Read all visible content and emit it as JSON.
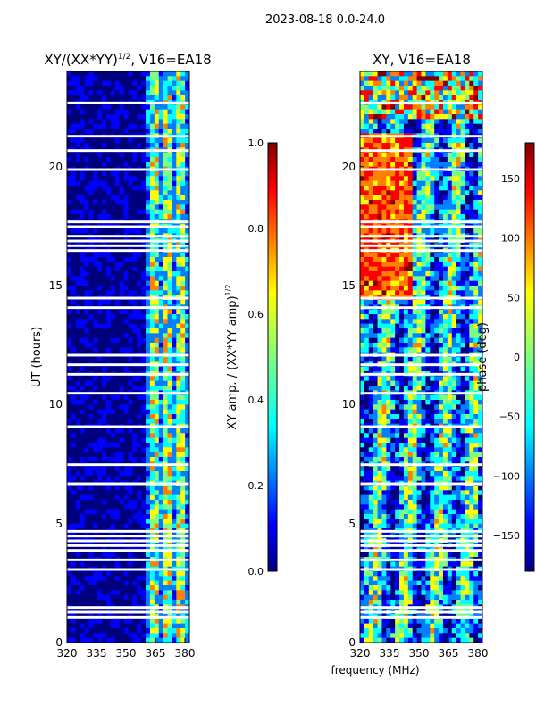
{
  "figure_title": "2023-08-18 0.0-24.0",
  "colors": {
    "c0": "#00007f",
    "c1": "#0000ff",
    "c2": "#0080ff",
    "c3": "#00ffff",
    "c4": "#7fff7f",
    "c5": "#ffff00",
    "c6": "#ff8000",
    "c7": "#ff0000",
    "c8": "#7f0000"
  },
  "chart_data": [
    {
      "type": "heatmap",
      "title": "XY/(XX*YY)",
      "title_exponent": "1/2",
      "title_suffix": ", V16=EA18",
      "xlabel": "",
      "ylabel": "UT (hours)",
      "xlim": [
        320,
        382
      ],
      "ylim": [
        0,
        24
      ],
      "xticks": [
        "320",
        "335",
        "350",
        "365",
        "380"
      ],
      "yticks": [
        "0",
        "5",
        "10",
        "15",
        "20"
      ],
      "colorbar": {
        "label": "XY amp. / (XX*YY amp)",
        "label_exponent": "1/2",
        "range": [
          0.0,
          1.0
        ],
        "ticks": [
          "0.0",
          "0.2",
          "0.4",
          "0.6",
          "0.8",
          "1.0"
        ]
      },
      "description_of_pattern": "mostly low amplitude (dark blue) below 360 MHz; elevated amplitude stripes between about 360 and 380 MHz; many blank rows"
    },
    {
      "type": "heatmap",
      "title": "XY, V16=EA18",
      "xlabel": "frequency (MHz)",
      "ylabel": "",
      "xlim": [
        320,
        382
      ],
      "ylim": [
        0,
        24
      ],
      "xticks": [
        "320",
        "335",
        "350",
        "365",
        "380"
      ],
      "yticks": [
        "0",
        "5",
        "10",
        "15",
        "20"
      ],
      "colorbar": {
        "label": "phase (deg)",
        "range": [
          -180,
          180
        ],
        "ticks": [
          "−150",
          "−100",
          "−50",
          "0",
          "50",
          "100",
          "150"
        ],
        "tick_values": [
          -150,
          -100,
          -50,
          0,
          50,
          100,
          150
        ]
      },
      "description_of_pattern": "phase varies across the full -180 to 180 range; warm (positive) phase band around 16-21 hours near 325-345 MHz; many blank rows"
    }
  ]
}
